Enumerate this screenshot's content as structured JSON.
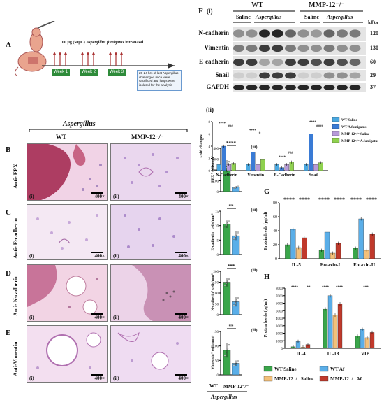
{
  "panels": {
    "A": "A",
    "B": "B",
    "C": "C",
    "D": "D",
    "E": "E",
    "F": "F",
    "F_i": "(i)",
    "F_ii": "(ii)",
    "G": "G",
    "H": "H"
  },
  "panelA": {
    "dose_text": "100 μg (50μL)",
    "agent_text": "Aspergillus fumigatus",
    "route_text": "intranasal",
    "weeks": [
      "Week 1",
      "Week 2",
      "Week 3"
    ],
    "note": "20-24 hrs of last Aspergillus challenged mice were sacrificed and lungs were isolated for the analysis"
  },
  "histology": {
    "group_title": "Aspergillus",
    "col_wt": "WT",
    "col_mmp": "MMP-12⁻/⁻",
    "rows": [
      {
        "label": "Anti- EPX",
        "panel": "B"
      },
      {
        "label": "Anti- E-cadherin",
        "panel": "C"
      },
      {
        "label": "Anti- N-cadherin",
        "panel": "D"
      },
      {
        "label": "Anti-Vimentin",
        "panel": "E"
      }
    ],
    "sub_i": "(i)",
    "sub_ii": "(ii)",
    "magnification": "400×"
  },
  "quant": {
    "sub": "(iii)",
    "xlabels": [
      "WT",
      "MMP-12⁻/⁻"
    ],
    "group_label": "Aspergillus",
    "charts": [
      {
        "ylabel": "EPX⁺ cells/mm²",
        "ylim": [
          0,
          400
        ],
        "ticks": [
          0,
          100,
          200,
          300,
          400
        ],
        "values": [
          235,
          40
        ],
        "err": [
          55,
          10
        ],
        "sig": "****"
      },
      {
        "ylabel": "E-cadherin⁺ cells/mm²",
        "ylim": [
          0,
          15
        ],
        "ticks": [
          0,
          5,
          10,
          15
        ],
        "values": [
          10.5,
          6.5
        ],
        "err": [
          1.3,
          1.5
        ],
        "sig": "**"
      },
      {
        "ylabel": "N-cadherin⁺ cells/mm²",
        "ylim": [
          0,
          200
        ],
        "ticks": [
          0,
          50,
          100,
          150,
          200
        ],
        "values": [
          150,
          60
        ],
        "err": [
          20,
          22
        ],
        "sig": "***"
      },
      {
        "ylabel": "Vimentin⁺ cells/mm²",
        "ylim": [
          0,
          150
        ],
        "ticks": [
          0,
          50,
          100,
          150
        ],
        "values": [
          85,
          40
        ],
        "err": [
          25,
          10
        ],
        "sig": "**"
      }
    ]
  },
  "western": {
    "wt": "WT",
    "mmp": "MMP-12⁻/⁻",
    "saline": "Saline",
    "asp": "Aspergillus",
    "kda_label": "kDa",
    "proteins": [
      {
        "name": "N-cadherin",
        "kda": "120"
      },
      {
        "name": "Vimentin",
        "kda": "130"
      },
      {
        "name": "E-cadherin",
        "kda": "60"
      },
      {
        "name": "Snail",
        "kda": "29"
      },
      {
        "name": "GAPDH",
        "kda": "37"
      }
    ]
  },
  "colors": {
    "wt_saline": "#4aa8e0",
    "wt_af": "#3a7bd5",
    "mmp_saline": "#b79ad9",
    "mmp_af": "#8fd14f",
    "green": "#3aa64a",
    "orange": "#f3c07a",
    "red": "#c0392b",
    "blue": "#5aaee8"
  },
  "chart_data": [
    {
      "type": "bar",
      "title": "",
      "ylabel": "Fold changes",
      "categories": [
        "N-Cadherin",
        "Vimentin",
        "E-Cadherin",
        "Snail"
      ],
      "ylim": [
        0,
        8
      ],
      "ticks": [
        0,
        2,
        4,
        6,
        8
      ],
      "legend_position": "right",
      "series": [
        {
          "name": "WT Saline",
          "values": [
            1.0,
            1.0,
            1.0,
            1.0
          ]
        },
        {
          "name": "WT A.fumigatus",
          "values": [
            4.0,
            3.0,
            0.5,
            6.0
          ]
        },
        {
          "name": "MMP-12⁻/⁻ Saline",
          "values": [
            1.0,
            1.0,
            1.0,
            1.0
          ]
        },
        {
          "name": "MMP-12⁻/⁻ A.fumigatus",
          "values": [
            1.2,
            1.8,
            1.4,
            1.3
          ]
        }
      ],
      "annotations": [
        "****",
        "###",
        "****",
        "#",
        "****",
        "###",
        "****",
        "####"
      ]
    },
    {
      "type": "bar",
      "title": "",
      "ylabel": "Protein levels (pg/ml)",
      "categories": [
        "IL-5",
        "Eotaxin-I",
        "Eotaxin-II"
      ],
      "ylim": [
        0,
        80
      ],
      "ticks": [
        0,
        20,
        40,
        60,
        80
      ],
      "series": [
        {
          "name": "WT Saline",
          "values": [
            20,
            12,
            15
          ]
        },
        {
          "name": "WT Af",
          "values": [
            42,
            38,
            57
          ]
        },
        {
          "name": "MMP-12⁻/⁻ Saline",
          "values": [
            16,
            8,
            12
          ]
        },
        {
          "name": "MMP-12⁻/⁻ Af",
          "values": [
            30,
            22,
            35
          ]
        }
      ],
      "annotations": [
        "****",
        "****",
        "****",
        "****",
        "****",
        "****"
      ]
    },
    {
      "type": "bar",
      "title": "",
      "ylabel": "Protein levels (pg/ml)",
      "categories": [
        "IL-4",
        "IL-18",
        "VIP"
      ],
      "ylim": [
        0,
        8000
      ],
      "ticks": [
        0,
        1000,
        2000,
        3000,
        4000,
        5000,
        6000,
        7000,
        8000
      ],
      "series": [
        {
          "name": "WT Saline",
          "values": [
            200,
            5200,
            1600
          ]
        },
        {
          "name": "WT Af",
          "values": [
            900,
            7000,
            2500
          ]
        },
        {
          "name": "MMP-12⁻/⁻ Saline",
          "values": [
            150,
            4400,
            1400
          ]
        },
        {
          "name": "MMP-12⁻/⁻ Af",
          "values": [
            500,
            5900,
            2100
          ]
        }
      ],
      "annotations": [
        "****",
        "**",
        "****",
        "****",
        "***"
      ],
      "legend": [
        "WT Saline",
        "WT Af",
        "MMP-12⁻/⁻ Saline",
        "MMP-12⁻/⁻ Af"
      ],
      "legend_position": "bottom"
    }
  ]
}
